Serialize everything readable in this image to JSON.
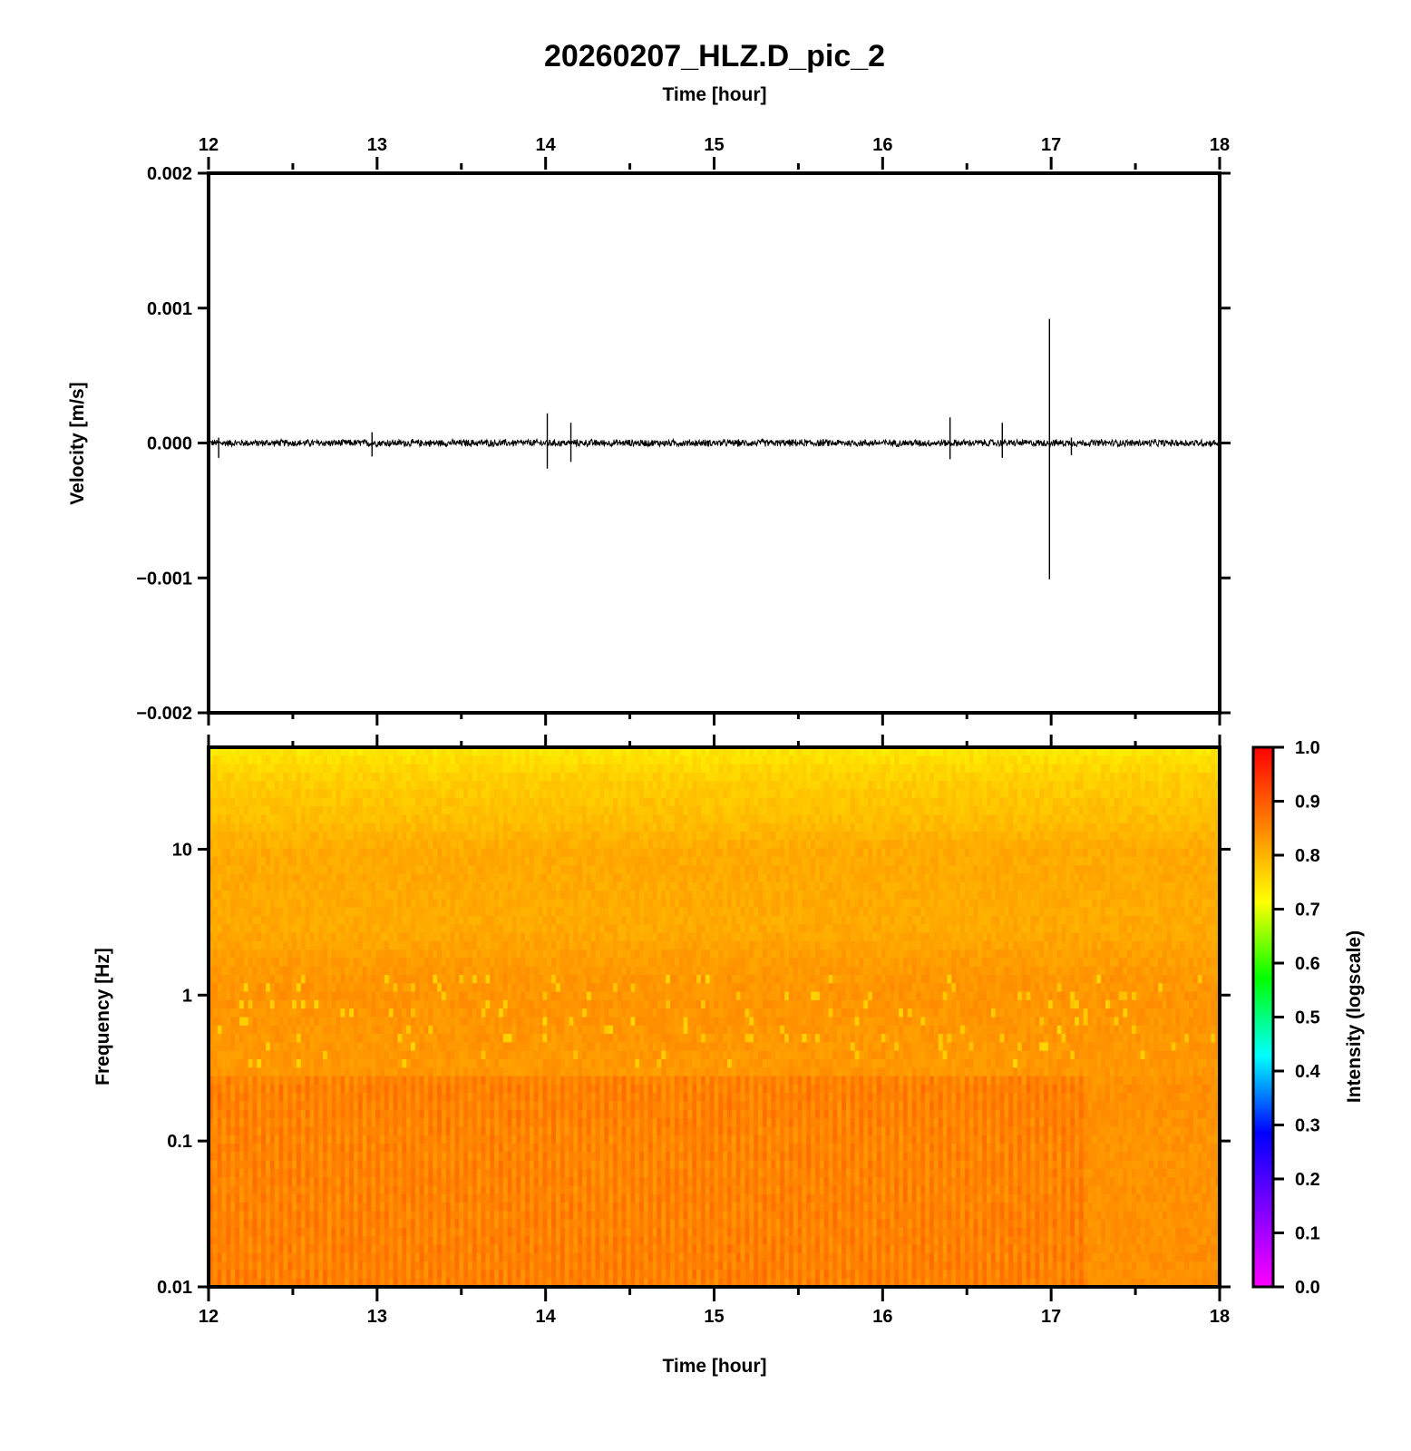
{
  "chart_data": [
    {
      "type": "line",
      "title": "20260207_HLZ.D_pic_2",
      "x_top_label": "Time [hour]",
      "ylabel": "Velocity [m/s]",
      "xlim": [
        12,
        18
      ],
      "ylim": [
        -0.002,
        0.002
      ],
      "x_ticks": [
        "12",
        "13",
        "14",
        "15",
        "16",
        "17",
        "18"
      ],
      "y_ticks": [
        "0.002",
        "0.001",
        "0.000",
        "-0.001",
        "-0.002"
      ],
      "y_tick_values": [
        0.002,
        0.001,
        0.0,
        -0.001,
        -0.002
      ],
      "noise_amplitude": 3e-05,
      "spikes": [
        {
          "x": 12.06,
          "ymax": 4e-05,
          "ymin": -0.00011
        },
        {
          "x": 12.97,
          "ymax": 8e-05,
          "ymin": -0.0001
        },
        {
          "x": 14.01,
          "ymax": 0.00022,
          "ymin": -0.00019
        },
        {
          "x": 14.15,
          "ymax": 0.00015,
          "ymin": -0.00014
        },
        {
          "x": 16.4,
          "ymax": 0.00019,
          "ymin": -0.00012
        },
        {
          "x": 16.71,
          "ymax": 0.00015,
          "ymin": -0.00011
        },
        {
          "x": 16.99,
          "ymax": 0.00092,
          "ymin": -0.00101
        },
        {
          "x": 17.12,
          "ymax": 4e-05,
          "ymin": -9e-05
        }
      ],
      "color": "#000000"
    },
    {
      "type": "heatmap",
      "xlabel": "Time [hour]",
      "ylabel": "Frequency [Hz]",
      "xlim": [
        12,
        18
      ],
      "ylim": [
        0.01,
        50
      ],
      "y_scale": "log",
      "x_ticks": [
        "12",
        "13",
        "14",
        "15",
        "16",
        "17",
        "18"
      ],
      "y_ticks": [
        "10",
        "1",
        "0.1",
        "0.01"
      ],
      "y_tick_values": [
        10,
        1,
        0.1,
        0.01
      ],
      "colorbar": {
        "label": "Intensity (logscale)",
        "range": [
          0.0,
          1.0
        ],
        "ticks": [
          "1.0",
          "0.9",
          "0.8",
          "0.7",
          "0.6",
          "0.5",
          "0.4",
          "0.3",
          "0.2",
          "0.1",
          "0.0"
        ],
        "tick_values": [
          1.0,
          0.9,
          0.8,
          0.7,
          0.6,
          0.5,
          0.4,
          0.3,
          0.2,
          0.1,
          0.0
        ],
        "colors": [
          "#ff00ff",
          "#8000ff",
          "#0000ff",
          "#00ffff",
          "#00ff00",
          "#ffff00",
          "#ff8000",
          "#ff0000"
        ]
      },
      "intensity_profile": [
        {
          "freq": 50,
          "intensity": 0.74
        },
        {
          "freq": 30,
          "intensity": 0.77
        },
        {
          "freq": 15,
          "intensity": 0.79
        },
        {
          "freq": 10,
          "intensity": 0.81
        },
        {
          "freq": 3,
          "intensity": 0.81
        },
        {
          "freq": 1.4,
          "intensity": 0.83
        },
        {
          "freq": 1.0,
          "intensity": 0.835
        },
        {
          "freq": 0.3,
          "intensity": 0.83
        },
        {
          "freq": 0.25,
          "intensity": 0.85
        },
        {
          "freq": 0.1,
          "intensity": 0.845
        },
        {
          "freq": 0.01,
          "intensity": 0.85
        }
      ],
      "band_change_time": 17.2
    }
  ]
}
